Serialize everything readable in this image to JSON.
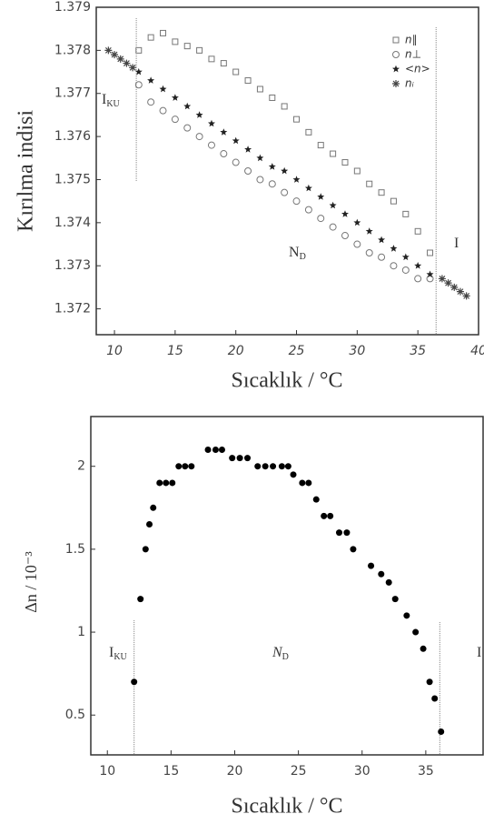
{
  "chart_data": [
    {
      "type": "scatter",
      "xlabel": "Sıcaklık / °C",
      "ylabel": "Kırılma indisi",
      "xlim": [
        8.5,
        40
      ],
      "ylim": [
        1.3714,
        1.379
      ],
      "xticks": [
        10,
        15,
        20,
        25,
        30,
        35,
        40
      ],
      "yticks": [
        1.372,
        1.373,
        1.374,
        1.375,
        1.376,
        1.377,
        1.378,
        1.379
      ],
      "phase_lines": [
        11.8,
        36.5
      ],
      "annotations": [
        {
          "text": "I",
          "sub": "KU"
        },
        {
          "text": "N",
          "sub": "D"
        },
        {
          "text": "I"
        }
      ],
      "series": [
        {
          "name": "n∥",
          "marker": "square",
          "color": "#777777",
          "x": [
            12,
            13,
            14,
            15,
            16,
            17,
            18,
            19,
            20,
            21,
            22,
            23,
            24,
            25,
            26,
            27,
            28,
            29,
            30,
            31,
            32,
            33,
            34,
            35,
            36
          ],
          "values": [
            1.378,
            1.3783,
            1.3784,
            1.3782,
            1.3781,
            1.378,
            1.3778,
            1.3777,
            1.3775,
            1.3773,
            1.3771,
            1.3769,
            1.3767,
            1.3764,
            1.3761,
            1.3758,
            1.3756,
            1.3754,
            1.3752,
            1.3749,
            1.3747,
            1.3745,
            1.3742,
            1.3738,
            1.3733
          ]
        },
        {
          "name": "n⊥",
          "marker": "circle",
          "color": "#777777",
          "x": [
            12,
            13,
            14,
            15,
            16,
            17,
            18,
            19,
            20,
            21,
            22,
            23,
            24,
            25,
            26,
            27,
            28,
            29,
            30,
            31,
            32,
            33,
            34,
            35,
            36
          ],
          "values": [
            1.3772,
            1.3768,
            1.3766,
            1.3764,
            1.3762,
            1.376,
            1.3758,
            1.3756,
            1.3754,
            1.3752,
            1.375,
            1.3749,
            1.3747,
            1.3745,
            1.3743,
            1.3741,
            1.3739,
            1.3737,
            1.3735,
            1.3733,
            1.3732,
            1.373,
            1.3729,
            1.3727,
            1.3727
          ]
        },
        {
          "name": "<n>",
          "marker": "star",
          "color": "#222222",
          "x": [
            12,
            13,
            14,
            15,
            16,
            17,
            18,
            19,
            20,
            21,
            22,
            23,
            24,
            25,
            26,
            27,
            28,
            29,
            30,
            31,
            32,
            33,
            34,
            35,
            36
          ],
          "values": [
            1.3775,
            1.3773,
            1.3771,
            1.3769,
            1.3767,
            1.3765,
            1.3763,
            1.3761,
            1.3759,
            1.3757,
            1.3755,
            1.3753,
            1.3752,
            1.375,
            1.3748,
            1.3746,
            1.3744,
            1.3742,
            1.374,
            1.3738,
            1.3736,
            1.3734,
            1.3732,
            1.373,
            1.3728
          ]
        },
        {
          "name": "nᵢ",
          "marker": "asterisk",
          "color": "#444444",
          "x": [
            9.5,
            10,
            10.5,
            11,
            11.5,
            37,
            37.5,
            38,
            38.5,
            39
          ],
          "values": [
            1.378,
            1.3779,
            1.3778,
            1.3777,
            1.3776,
            1.3727,
            1.3726,
            1.3725,
            1.3724,
            1.3723
          ]
        }
      ]
    },
    {
      "type": "scatter",
      "xlabel": "Sıcaklık / °C",
      "ylabel": "Δn / 10⁻³",
      "xlim": [
        8.7,
        39.5
      ],
      "ylim": [
        0.26,
        2.3
      ],
      "xticks": [
        10,
        15,
        20,
        25,
        30,
        35
      ],
      "yticks": [
        0.5,
        1.0,
        1.5,
        2.0
      ],
      "phase_lines": [
        12.1,
        36.1
      ],
      "annotations": [
        {
          "text": "I",
          "sub": "KU"
        },
        {
          "text": "N",
          "sub": "D"
        },
        {
          "text": "I"
        }
      ],
      "series": [
        {
          "marker": "dot",
          "color": "#000000",
          "x": [
            12.1,
            12.6,
            13.0,
            13.3,
            13.6,
            14.1,
            14.6,
            15.1,
            15.6,
            16.1,
            16.6,
            17.9,
            18.5,
            19.0,
            19.8,
            20.4,
            21.0,
            21.8,
            22.4,
            23.0,
            23.7,
            24.2,
            24.6,
            25.3,
            25.8,
            26.4,
            27.0,
            27.5,
            28.2,
            28.8,
            29.3,
            30.7,
            31.5,
            32.1,
            32.6,
            33.5,
            34.2,
            34.8,
            35.3,
            35.7,
            36.2
          ],
          "values": [
            0.7,
            1.2,
            1.5,
            1.65,
            1.75,
            1.9,
            1.9,
            1.9,
            2.0,
            2.0,
            2.0,
            2.1,
            2.1,
            2.1,
            2.05,
            2.05,
            2.05,
            2.0,
            2.0,
            2.0,
            2.0,
            2.0,
            1.95,
            1.9,
            1.9,
            1.8,
            1.7,
            1.7,
            1.6,
            1.6,
            1.5,
            1.4,
            1.35,
            1.3,
            1.2,
            1.1,
            1.0,
            0.9,
            0.7,
            0.6,
            0.4
          ]
        }
      ]
    }
  ]
}
